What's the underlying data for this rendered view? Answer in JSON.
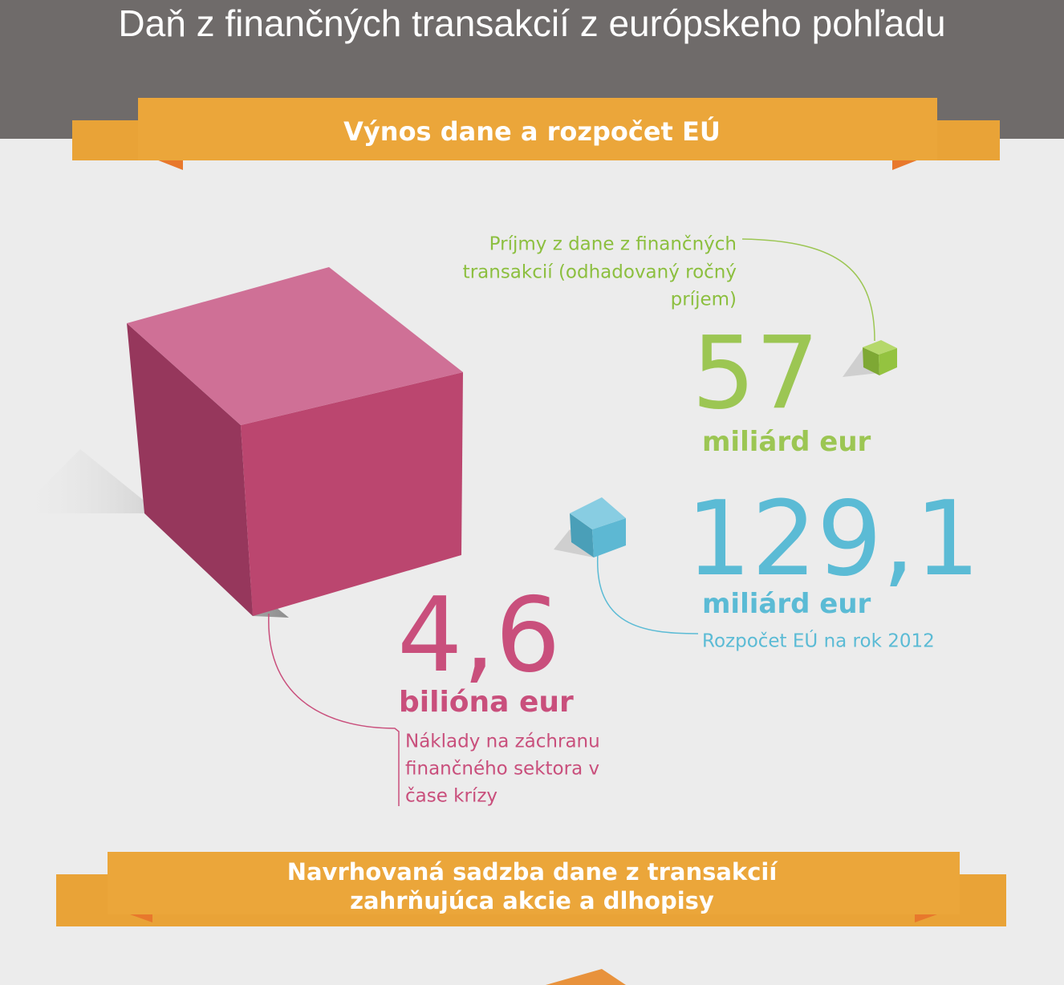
{
  "header": {
    "title": "Daň z finančných transakcií z európskeho pohľadu"
  },
  "sections": [
    {
      "title": "Výnos dane a rozpočet EÚ"
    },
    {
      "title": [
        "Navrhovaná sadzba dane z transakcií",
        "zahrňujúca akcie a dlhopisy"
      ]
    }
  ],
  "figures": [
    {
      "value": "57",
      "unit": "miliárd eur",
      "label": [
        "Príjmy z dane z finančných",
        "transakcií (odhadovaný ročný",
        "príjem)"
      ]
    },
    {
      "value": "129,1",
      "unit": "miliárd eur",
      "label": [
        "Rozpočet EÚ na rok 2012"
      ]
    },
    {
      "value": "4,6",
      "unit": "bilióna eur",
      "label": [
        "Náklady na záchranu",
        "finančného sektora v",
        "čase krízy"
      ]
    }
  ]
}
